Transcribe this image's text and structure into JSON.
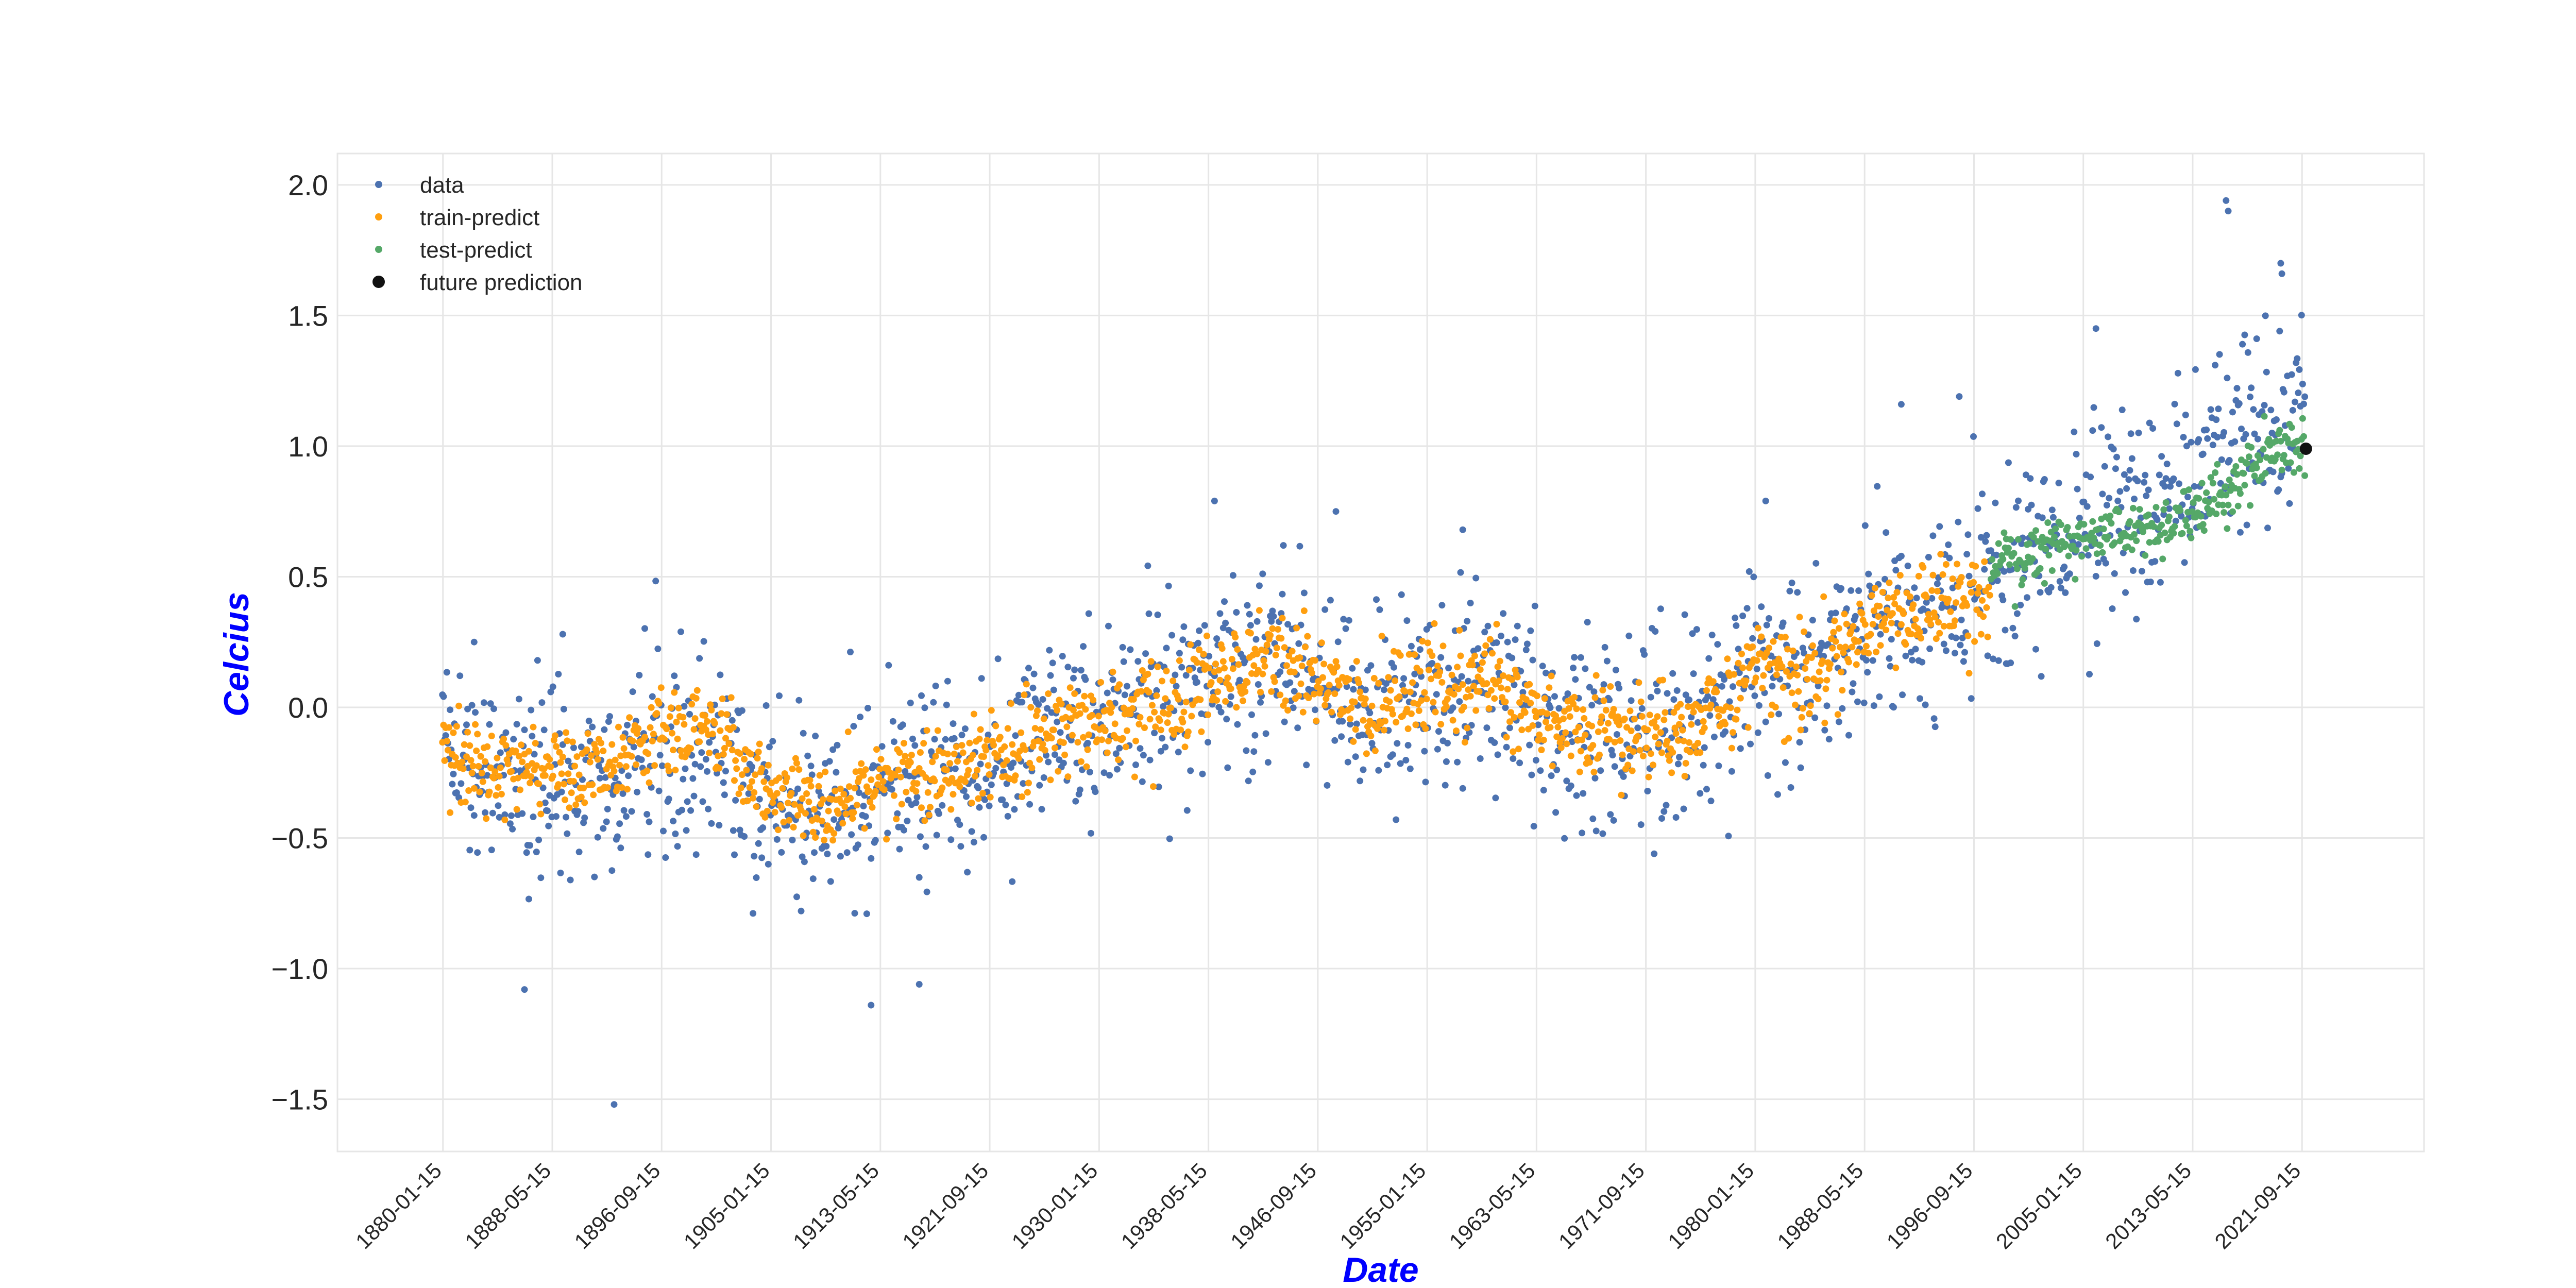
{
  "chart_data": {
    "type": "scatter",
    "title": "",
    "xlabel": "Date",
    "ylabel": "Celcius",
    "x_range": [
      "1872-01-01",
      "2031-01-01"
    ],
    "ylim": [
      -1.7,
      2.12
    ],
    "x_ticks": [
      "1880-01-15",
      "1888-05-15",
      "1896-09-15",
      "1905-01-15",
      "1913-05-15",
      "1921-09-15",
      "1930-01-15",
      "1938-05-15",
      "1946-09-15",
      "1955-01-15",
      "1963-05-15",
      "1971-09-15",
      "1980-01-15",
      "1988-05-15",
      "1996-09-15",
      "2005-01-15",
      "2013-05-15",
      "2021-09-15"
    ],
    "y_ticks": [
      -1.5,
      -1.0,
      -0.5,
      0.0,
      0.5,
      1.0,
      1.5,
      2.0
    ],
    "y_tick_labels": [
      "−1.5",
      "−1.0",
      "−0.5",
      "0.0",
      "0.5",
      "1.0",
      "1.5",
      "2.0"
    ],
    "grid": true,
    "legend_position": "top-left",
    "date_range": [
      "1880-01",
      "2021-12"
    ],
    "train_range": [
      "1880-01",
      "1997-12"
    ],
    "test_range": [
      "1998-01",
      "2021-12"
    ],
    "series": [
      {
        "name": "data",
        "color": "#4c72b0",
        "marker": "small-dot",
        "trend": [
          [
            "1880",
            -0.22
          ],
          [
            "1885",
            -0.28
          ],
          [
            "1890",
            -0.3
          ],
          [
            "1895",
            -0.2
          ],
          [
            "1900",
            -0.12
          ],
          [
            "1905",
            -0.35
          ],
          [
            "1910",
            -0.4
          ],
          [
            "1915",
            -0.25
          ],
          [
            "1920",
            -0.28
          ],
          [
            "1925",
            -0.15
          ],
          [
            "1930",
            -0.05
          ],
          [
            "1935",
            0.0
          ],
          [
            "1940",
            0.15
          ],
          [
            "1945",
            0.18
          ],
          [
            "1950",
            -0.05
          ],
          [
            "1955",
            0.05
          ],
          [
            "1960",
            0.08
          ],
          [
            "1965",
            -0.1
          ],
          [
            "1970",
            -0.05
          ],
          [
            "1975",
            -0.08
          ],
          [
            "1980",
            0.15
          ],
          [
            "1985",
            0.1
          ],
          [
            "1990",
            0.38
          ],
          [
            "1995",
            0.35
          ],
          [
            "2000",
            0.55
          ],
          [
            "2005",
            0.72
          ],
          [
            "2010",
            0.75
          ],
          [
            "2015",
            1.0
          ],
          [
            "2020",
            1.1
          ]
        ],
        "notable_points": [
          [
            "1882-06",
            0.25
          ],
          [
            "1886-04",
            -1.08
          ],
          [
            "1889-03",
            0.28
          ],
          [
            "1893-02",
            -1.52
          ],
          [
            "1912-09",
            -1.14
          ],
          [
            "1916-05",
            -1.06
          ],
          [
            "1938-11",
            0.79
          ],
          [
            "1944-02",
            0.62
          ],
          [
            "1957-10",
            0.68
          ],
          [
            "1980-11",
            0.79
          ],
          [
            "1991-03",
            1.16
          ],
          [
            "1995-08",
            1.19
          ],
          [
            "2006-01",
            1.45
          ],
          [
            "2015-12",
            1.94
          ],
          [
            "2016-02",
            1.9
          ],
          [
            "2020-02",
            1.7
          ],
          [
            "2020-03",
            1.66
          ]
        ]
      },
      {
        "name": "train-predict",
        "color": "#ff9f0f",
        "marker": "small-dot",
        "trend": [
          [
            "1880",
            -0.15
          ],
          [
            "1885",
            -0.25
          ],
          [
            "1890",
            -0.25
          ],
          [
            "1895",
            -0.15
          ],
          [
            "1900",
            -0.05
          ],
          [
            "1905",
            -0.35
          ],
          [
            "1910",
            -0.38
          ],
          [
            "1915",
            -0.25
          ],
          [
            "1920",
            -0.25
          ],
          [
            "1925",
            -0.12
          ],
          [
            "1930",
            -0.05
          ],
          [
            "1935",
            0.0
          ],
          [
            "1940",
            0.15
          ],
          [
            "1945",
            0.18
          ],
          [
            "1950",
            0.0
          ],
          [
            "1955",
            0.05
          ],
          [
            "1960",
            0.1
          ],
          [
            "1965",
            -0.05
          ],
          [
            "1970",
            -0.1
          ],
          [
            "1975",
            -0.1
          ],
          [
            "1980",
            0.15
          ],
          [
            "1985",
            0.12
          ],
          [
            "1990",
            0.35
          ],
          [
            "1995",
            0.38
          ]
        ]
      },
      {
        "name": "test-predict",
        "color": "#55a868",
        "marker": "small-dot",
        "trend": [
          [
            "1998",
            0.55
          ],
          [
            "2002",
            0.6
          ],
          [
            "2006",
            0.68
          ],
          [
            "2010",
            0.68
          ],
          [
            "2014",
            0.75
          ],
          [
            "2017",
            0.88
          ],
          [
            "2020",
            1.0
          ]
        ]
      },
      {
        "name": "future prediction",
        "color": "#111111",
        "marker": "large-dot",
        "points": [
          [
            "2022-01",
            0.99
          ]
        ]
      }
    ]
  }
}
